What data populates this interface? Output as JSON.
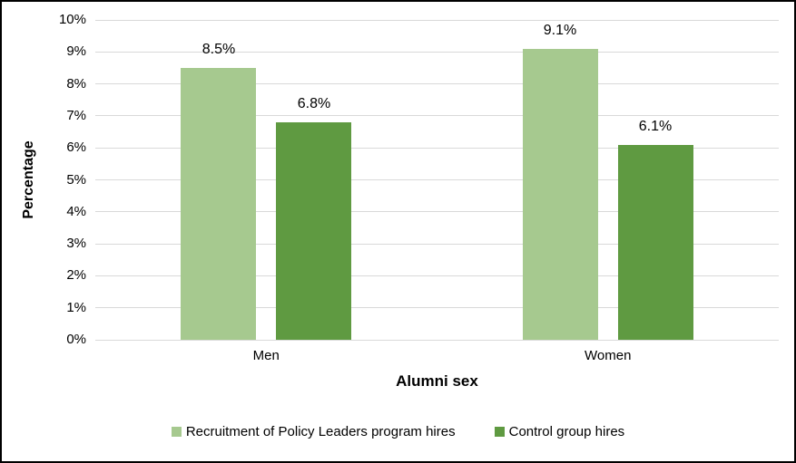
{
  "chart_data": {
    "type": "bar",
    "title": "",
    "xlabel": "Alumni sex",
    "ylabel": "Percentage",
    "categories": [
      "Men",
      "Women"
    ],
    "series": [
      {
        "name": "Recruitment of Policy Leaders program hires",
        "color": "#a6c98f",
        "values": [
          8.5,
          9.1
        ],
        "labels": [
          "8.5%",
          "9.1%"
        ]
      },
      {
        "name": "Control group hires",
        "color": "#5f9a41",
        "values": [
          6.8,
          6.1
        ],
        "labels": [
          "6.8%",
          "6.1%"
        ]
      }
    ],
    "ylim": [
      0,
      10
    ],
    "ytick_step": 1,
    "ytick_labels": [
      "0%",
      "1%",
      "2%",
      "3%",
      "4%",
      "5%",
      "6%",
      "7%",
      "8%",
      "9%",
      "10%"
    ],
    "grid": true,
    "gridline_color": "#d9d9d9",
    "legend_position": "bottom"
  }
}
